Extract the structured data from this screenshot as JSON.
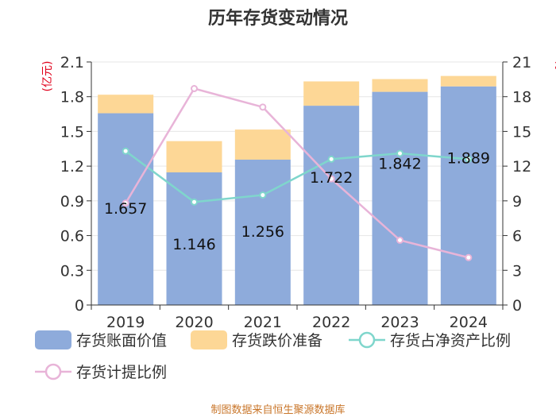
{
  "chart_data": {
    "type": "bar",
    "title": "历年存货变动情况",
    "categories": [
      "2019",
      "2020",
      "2021",
      "2022",
      "2023",
      "2024"
    ],
    "series": [
      {
        "name": "存货账面价值",
        "kind": "bar",
        "axis": "left",
        "color": "#8eabdb",
        "values": [
          1.657,
          1.146,
          1.256,
          1.722,
          1.842,
          1.889
        ]
      },
      {
        "name": "存货跌价准备",
        "kind": "bar-stack",
        "axis": "left",
        "color": "#fdd796",
        "values": [
          0.16,
          0.27,
          0.26,
          0.21,
          0.11,
          0.09
        ]
      },
      {
        "name": "存货占净资产比例",
        "kind": "line",
        "axis": "right",
        "color": "#7fd6cc",
        "values": [
          13.3,
          8.9,
          9.5,
          12.6,
          13.1,
          12.6
        ]
      },
      {
        "name": "存货计提比例",
        "kind": "line",
        "axis": "right",
        "color": "#e8b4d8",
        "values": [
          8.8,
          18.7,
          17.1,
          10.9,
          5.6,
          4.1
        ]
      }
    ],
    "data_labels": [
      "1.657",
      "1.146",
      "1.256",
      "1.722",
      "1.842",
      "1.889"
    ],
    "left_axis": {
      "unit": "(亿元)",
      "range": [
        0,
        2.1
      ],
      "ticks": [
        "0",
        "0.3",
        "0.6",
        "0.9",
        "1.2",
        "1.5",
        "1.8",
        "2.1"
      ]
    },
    "right_axis": {
      "unit": "%",
      "range": [
        0,
        21
      ],
      "ticks": [
        "0",
        "3",
        "6",
        "9",
        "12",
        "15",
        "18",
        "21"
      ]
    },
    "grid": true,
    "legend_position": "bottom"
  },
  "source": "制图数据来自恒生聚源数据库"
}
